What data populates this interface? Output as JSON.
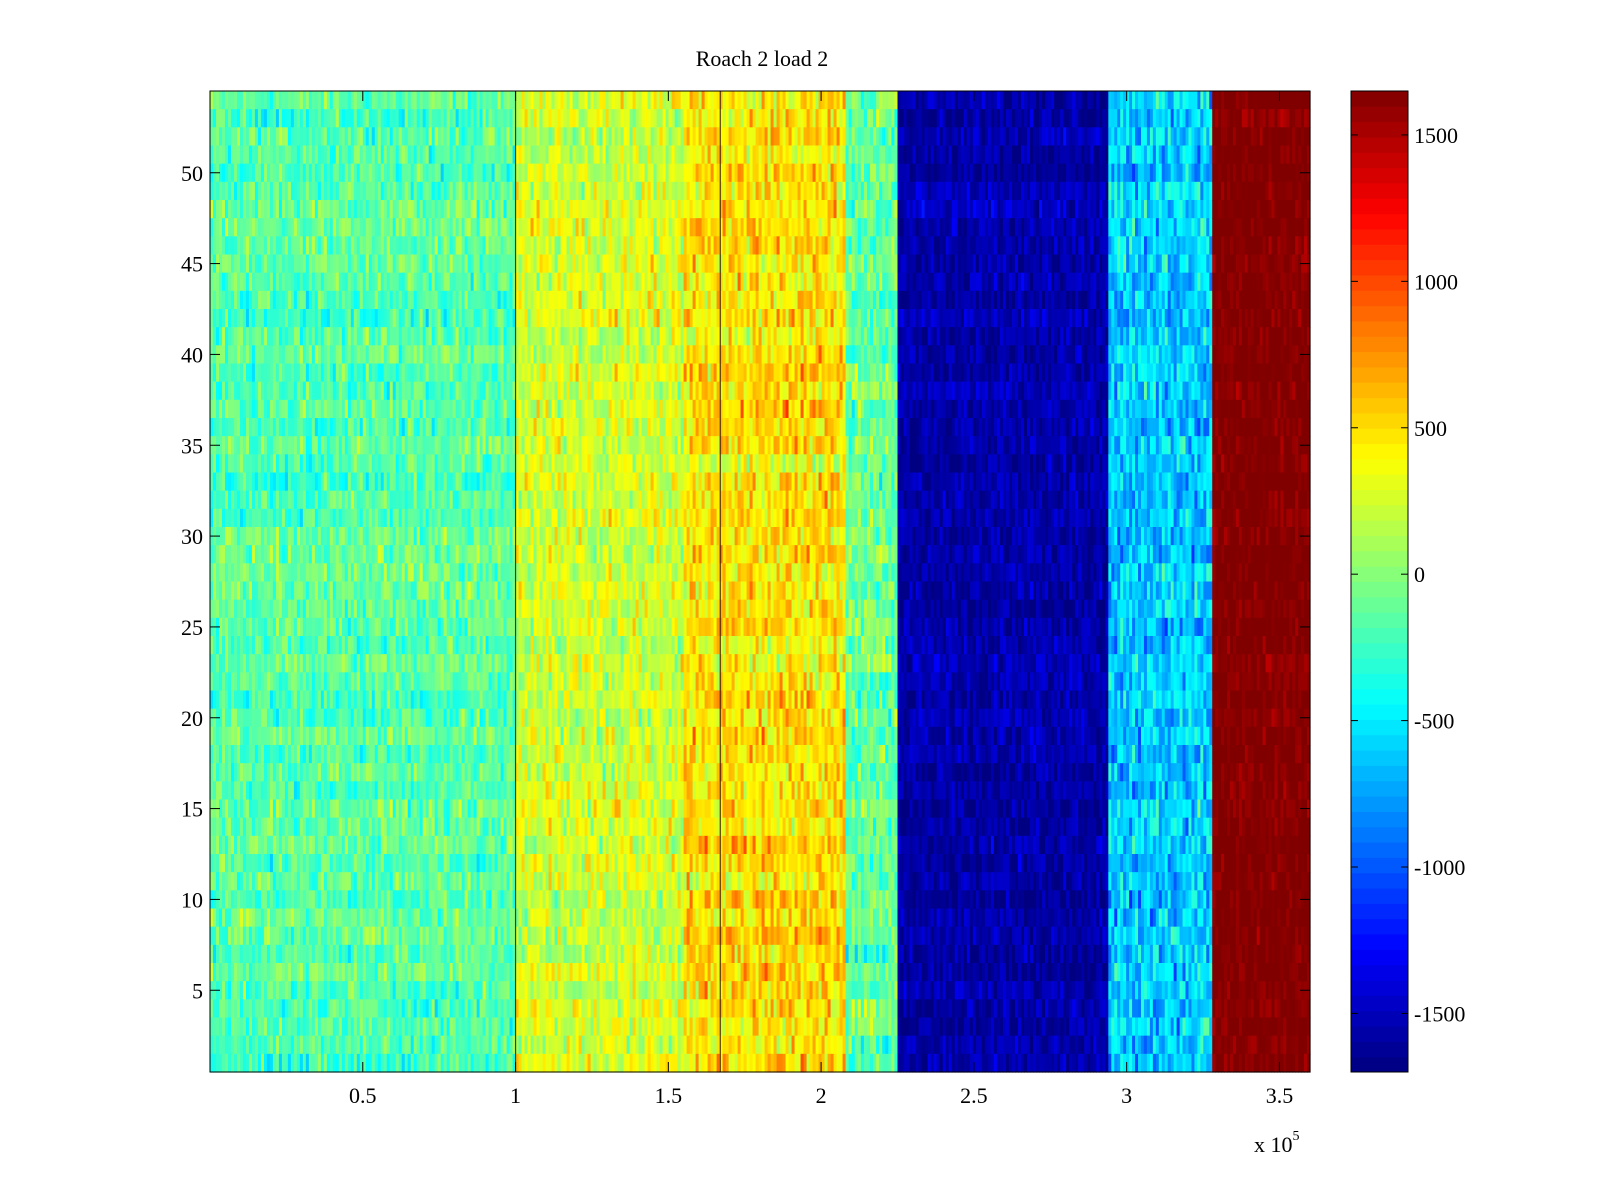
{
  "chart_data": {
    "type": "heatmap",
    "title": "Roach 2 load 2",
    "xlabel": "",
    "ylabel": "",
    "x_multiplier_label": "x 10",
    "x_multiplier_exponent": "5",
    "xlim": [
      0,
      360000
    ],
    "ylim": [
      0.5,
      54.5
    ],
    "rows": 54,
    "colormap": "jet",
    "clim": [
      -1700,
      1650
    ],
    "x_ticks": [
      {
        "value": 50000,
        "label": "0.5"
      },
      {
        "value": 100000,
        "label": "1"
      },
      {
        "value": 150000,
        "label": "1.5"
      },
      {
        "value": 200000,
        "label": "2"
      },
      {
        "value": 250000,
        "label": "2.5"
      },
      {
        "value": 300000,
        "label": "3"
      },
      {
        "value": 350000,
        "label": "3.5"
      }
    ],
    "y_ticks": [
      {
        "value": 5,
        "label": "5"
      },
      {
        "value": 10,
        "label": "10"
      },
      {
        "value": 15,
        "label": "15"
      },
      {
        "value": 20,
        "label": "20"
      },
      {
        "value": 25,
        "label": "25"
      },
      {
        "value": 30,
        "label": "30"
      },
      {
        "value": 35,
        "label": "35"
      },
      {
        "value": 40,
        "label": "40"
      },
      {
        "value": 45,
        "label": "45"
      },
      {
        "value": 50,
        "label": "50"
      }
    ],
    "colorbar_ticks": [
      {
        "value": 1500,
        "label": "1500"
      },
      {
        "value": 1000,
        "label": "1000"
      },
      {
        "value": 500,
        "label": "500"
      },
      {
        "value": 0,
        "label": "0"
      },
      {
        "value": -500,
        "label": "-500"
      },
      {
        "value": -1000,
        "label": "-1000"
      },
      {
        "value": -1500,
        "label": "-1500"
      }
    ],
    "segments": [
      {
        "x_start": 0,
        "x_end": 100000,
        "mean_value": -150,
        "noise": 260
      },
      {
        "x_start": 100000,
        "x_end": 155000,
        "mean_value": 250,
        "noise": 280
      },
      {
        "x_start": 155000,
        "x_end": 208000,
        "mean_value": 470,
        "noise": 300
      },
      {
        "x_start": 208000,
        "x_end": 225000,
        "mean_value": -100,
        "noise": 300
      },
      {
        "x_start": 225000,
        "x_end": 294000,
        "mean_value": -1550,
        "noise": 180
      },
      {
        "x_start": 294000,
        "x_end": 328000,
        "mean_value": -600,
        "noise": 320
      },
      {
        "x_start": 328000,
        "x_end": 360000,
        "mean_value": 1650,
        "noise": 120
      }
    ],
    "vertical_lines_x": [
      100000,
      167000
    ]
  }
}
